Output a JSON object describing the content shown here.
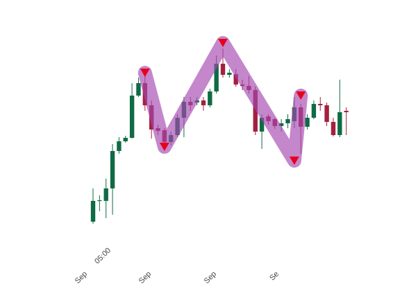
{
  "chart_data": {
    "type": "candlestick",
    "x_labels": [
      "Sep",
      "05:00",
      "Sep",
      "Sep",
      "Se"
    ],
    "open": [
      20,
      51,
      50,
      68,
      122,
      136,
      141,
      202,
      220,
      188,
      155,
      152,
      135,
      145,
      170,
      193,
      192,
      195,
      188,
      208,
      248,
      232,
      233,
      218,
      216,
      210,
      150,
      172,
      168,
      158,
      162,
      165,
      185,
      157,
      170,
      190,
      188,
      164,
      145,
      180
    ],
    "high": [
      68,
      58,
      82,
      132,
      142,
      144,
      220,
      228,
      235,
      195,
      160,
      155,
      150,
      175,
      200,
      200,
      200,
      200,
      212,
      260,
      270,
      240,
      240,
      225,
      230,
      215,
      175,
      175,
      170,
      168,
      175,
      200,
      190,
      175,
      195,
      200,
      192,
      170,
      225,
      185
    ],
    "low": [
      17,
      35,
      25,
      30,
      118,
      134,
      140,
      200,
      180,
      140,
      145,
      125,
      130,
      142,
      142,
      180,
      188,
      180,
      185,
      205,
      228,
      228,
      215,
      210,
      205,
      145,
      125,
      160,
      154,
      150,
      155,
      155,
      118,
      153,
      168,
      180,
      158,
      143,
      142,
      145
    ],
    "close": [
      50,
      51,
      68,
      122,
      136,
      141,
      202,
      220,
      188,
      153,
      151,
      135,
      145,
      170,
      193,
      188,
      195,
      188,
      208,
      248,
      232,
      235,
      218,
      216,
      210,
      150,
      170,
      165,
      158,
      162,
      168,
      185,
      157,
      170,
      190,
      188,
      164,
      145,
      178,
      178
    ],
    "up_color": "#0f6b45",
    "down_color": "#a3203f",
    "ylim": [
      0,
      300
    ],
    "zigzag_x": [
      8,
      11,
      20,
      31,
      32
    ],
    "zigzag_values": [
      235,
      128,
      278,
      108,
      202
    ],
    "zigzag_color": "rgba(165,70,175,0.65)",
    "marker_color": "#e8001c"
  }
}
